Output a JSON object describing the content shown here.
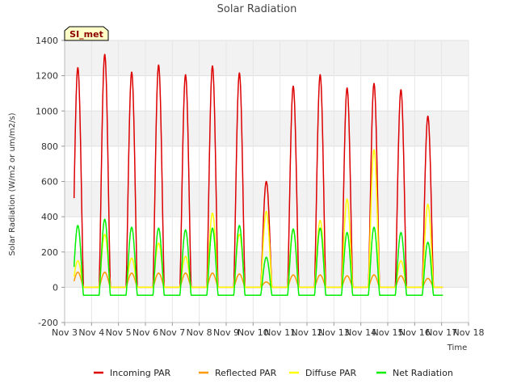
{
  "chart_data": {
    "type": "line",
    "title": "Solar Radiation",
    "xlabel": "Time",
    "ylabel": "Solar Radiation (W/m2 or um/m2/s)",
    "site_label": "SI_met",
    "xlim": [
      3,
      18
    ],
    "ylim": [
      -200,
      1400
    ],
    "yticks": [
      -200,
      0,
      200,
      400,
      600,
      800,
      1000,
      1200,
      1400
    ],
    "xticks": [
      {
        "v": 3,
        "label": "Nov 3"
      },
      {
        "v": 4,
        "label": "Nov 4"
      },
      {
        "v": 5,
        "label": "Nov 5"
      },
      {
        "v": 6,
        "label": "Nov 6"
      },
      {
        "v": 7,
        "label": "Nov 7"
      },
      {
        "v": 8,
        "label": "Nov 8"
      },
      {
        "v": 9,
        "label": "Nov 9"
      },
      {
        "v": 10,
        "label": "Nov 10"
      },
      {
        "v": 11,
        "label": "Nov 11"
      },
      {
        "v": 12,
        "label": "Nov 12"
      },
      {
        "v": 13,
        "label": "Nov 13"
      },
      {
        "v": 14,
        "label": "Nov 14"
      },
      {
        "v": 15,
        "label": "Nov 15"
      },
      {
        "v": 16,
        "label": "Nov 16"
      },
      {
        "v": 17,
        "label": "Nov 17"
      },
      {
        "v": 18,
        "label": "Nov 18"
      }
    ],
    "data_start": 3.35,
    "data_end": 17.05,
    "days": [
      3,
      4,
      5,
      6,
      7,
      8,
      9,
      10,
      11,
      12,
      13,
      14,
      15,
      16
    ],
    "day_window": [
      0.28,
      0.7
    ],
    "series": [
      {
        "name": "Incoming PAR",
        "color": "#dd0000",
        "night": 0,
        "peaks": [
          1245,
          1320,
          1220,
          1260,
          1205,
          1255,
          1215,
          600,
          1140,
          1205,
          1130,
          1155,
          1120,
          970
        ]
      },
      {
        "name": "Reflected PAR",
        "color": "#ff9900",
        "night": 0,
        "peaks": [
          85,
          85,
          80,
          80,
          80,
          80,
          75,
          30,
          70,
          70,
          65,
          70,
          65,
          50
        ]
      },
      {
        "name": "Diffuse PAR",
        "color": "#ffff00",
        "night": 0,
        "peaks": [
          150,
          300,
          165,
          250,
          175,
          420,
          300,
          430,
          330,
          380,
          500,
          780,
          150,
          470
        ]
      },
      {
        "name": "Net Radiation",
        "color": "#00ee00",
        "night": -45,
        "peaks": [
          350,
          385,
          340,
          335,
          325,
          335,
          350,
          170,
          330,
          335,
          310,
          340,
          310,
          255
        ]
      }
    ]
  }
}
